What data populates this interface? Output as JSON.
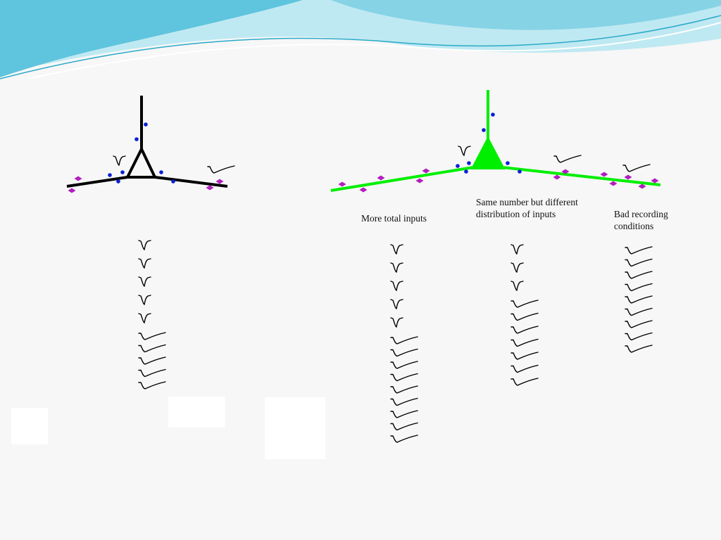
{
  "colors": {
    "banner_dark": "#5fc4dd",
    "banner_light": "#bfe9f2",
    "neuron_black": "#000000",
    "neuron_green": "#00ee00",
    "synapse_blue": "#0a1fd6",
    "synapse_magenta": "#b21ec0",
    "trace": "#000000",
    "slide_bg": "#f7f7f7"
  },
  "labels": {
    "more_inputs": "More total inputs",
    "same_number": "Same number but different distribution of inputs",
    "bad_recording": "Bad recording conditions"
  },
  "trace_columns": {
    "baseline": {
      "fast": 5,
      "slow": 5
    },
    "more_inputs": {
      "fast": 5,
      "slow": 9
    },
    "same_distribution": {
      "fast": 3,
      "slow": 7
    },
    "bad_recording": {
      "fast": 0,
      "slow": 9
    }
  }
}
